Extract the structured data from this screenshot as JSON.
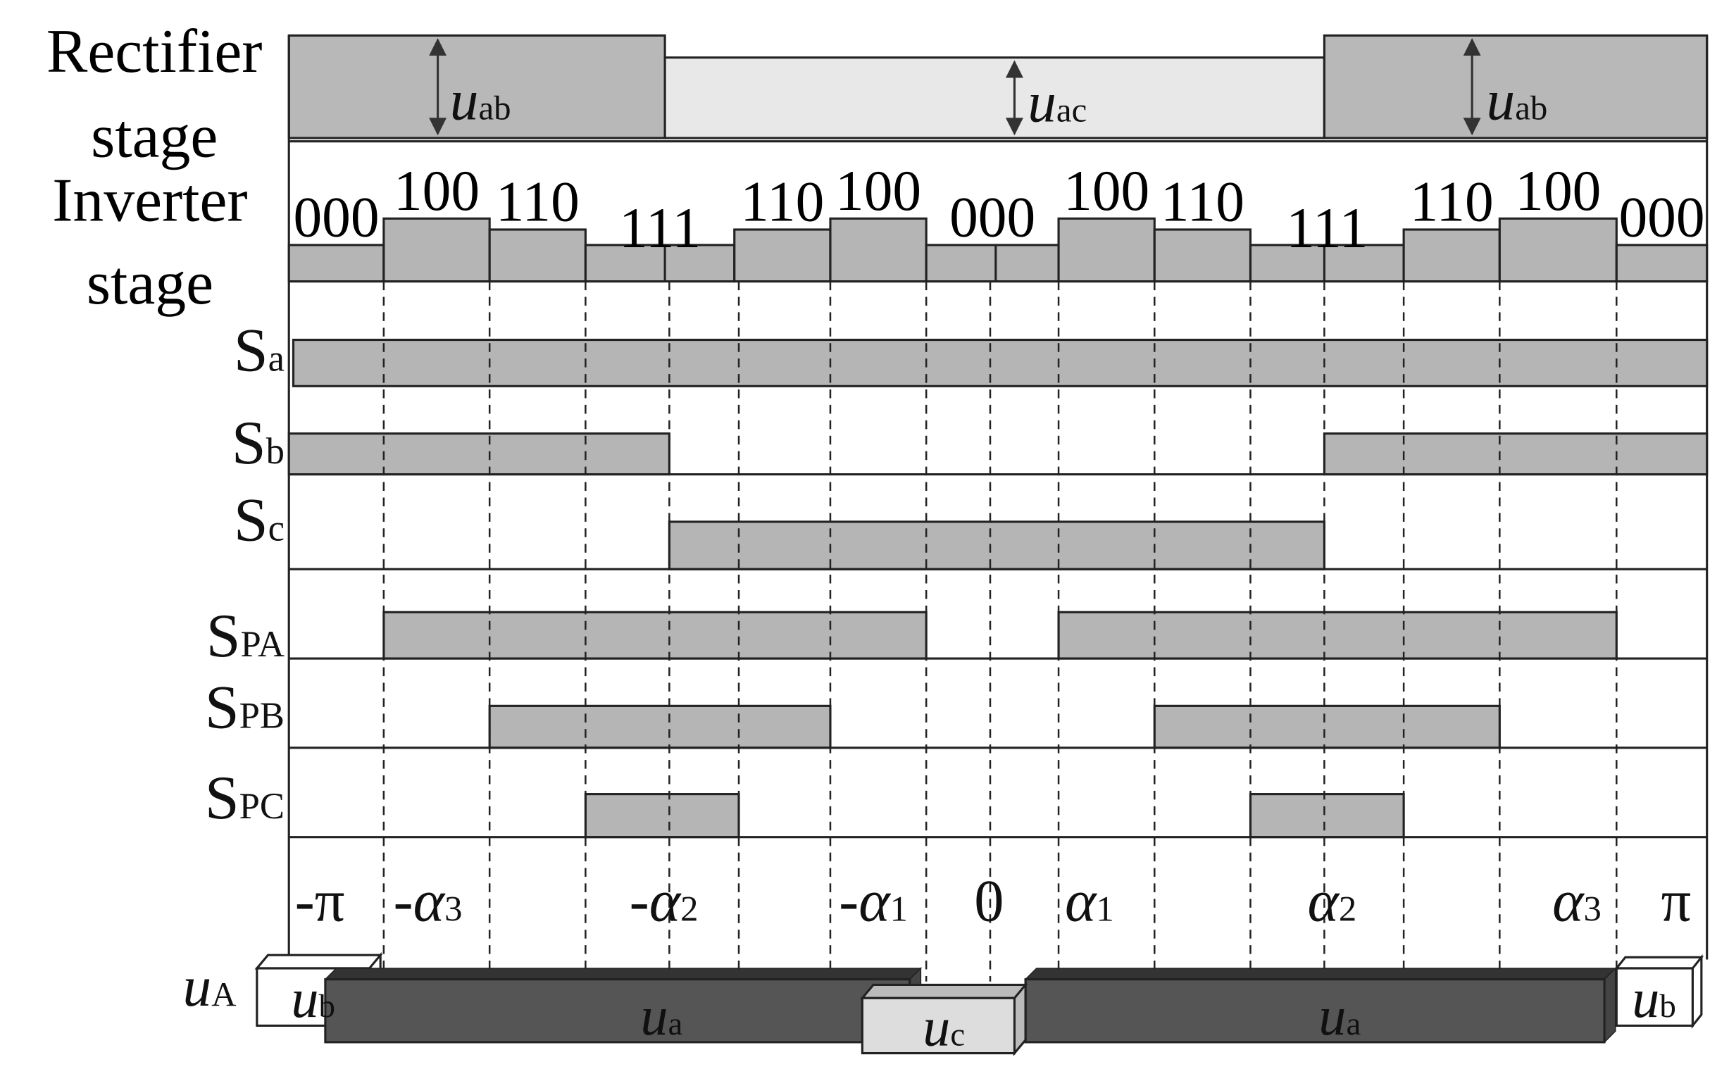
{
  "rectifier": {
    "label": [
      "Rectifier",
      "stage"
    ],
    "segments": [
      {
        "main": "u",
        "sub": "ab"
      },
      {
        "main": "u",
        "sub": "ac"
      },
      {
        "main": "u",
        "sub": "ab"
      }
    ]
  },
  "inverter": {
    "label": [
      "Inverter",
      "stage"
    ],
    "states": [
      "000",
      "100",
      "110",
      "111",
      "110",
      "100",
      "000",
      "100",
      "110",
      "111",
      "110",
      "100",
      "000"
    ]
  },
  "signals": [
    {
      "main": "S",
      "sub": "a"
    },
    {
      "main": "S",
      "sub": "b"
    },
    {
      "main": "S",
      "sub": "c"
    },
    {
      "main": "S",
      "sub": "PA"
    },
    {
      "main": "S",
      "sub": "PB"
    },
    {
      "main": "S",
      "sub": "PC"
    }
  ],
  "angles": [
    {
      "main": "-π"
    },
    {
      "main": "-α",
      "sub": "3"
    },
    {
      "main": "-α",
      "sub": "2"
    },
    {
      "main": "-α",
      "sub": "1"
    },
    {
      "main": "0"
    },
    {
      "main": "α",
      "sub": "1"
    },
    {
      "main": "α",
      "sub": "2"
    },
    {
      "main": "α",
      "sub": "3"
    },
    {
      "main": "π"
    }
  ],
  "output": {
    "label": {
      "main": "u",
      "sub": "A"
    },
    "blocks": [
      {
        "main": "u",
        "sub": "b"
      },
      {
        "main": "u",
        "sub": "a"
      },
      {
        "main": "u",
        "sub": "c"
      },
      {
        "main": "u",
        "sub": "a"
      },
      {
        "main": "u",
        "sub": "b"
      }
    ]
  }
}
